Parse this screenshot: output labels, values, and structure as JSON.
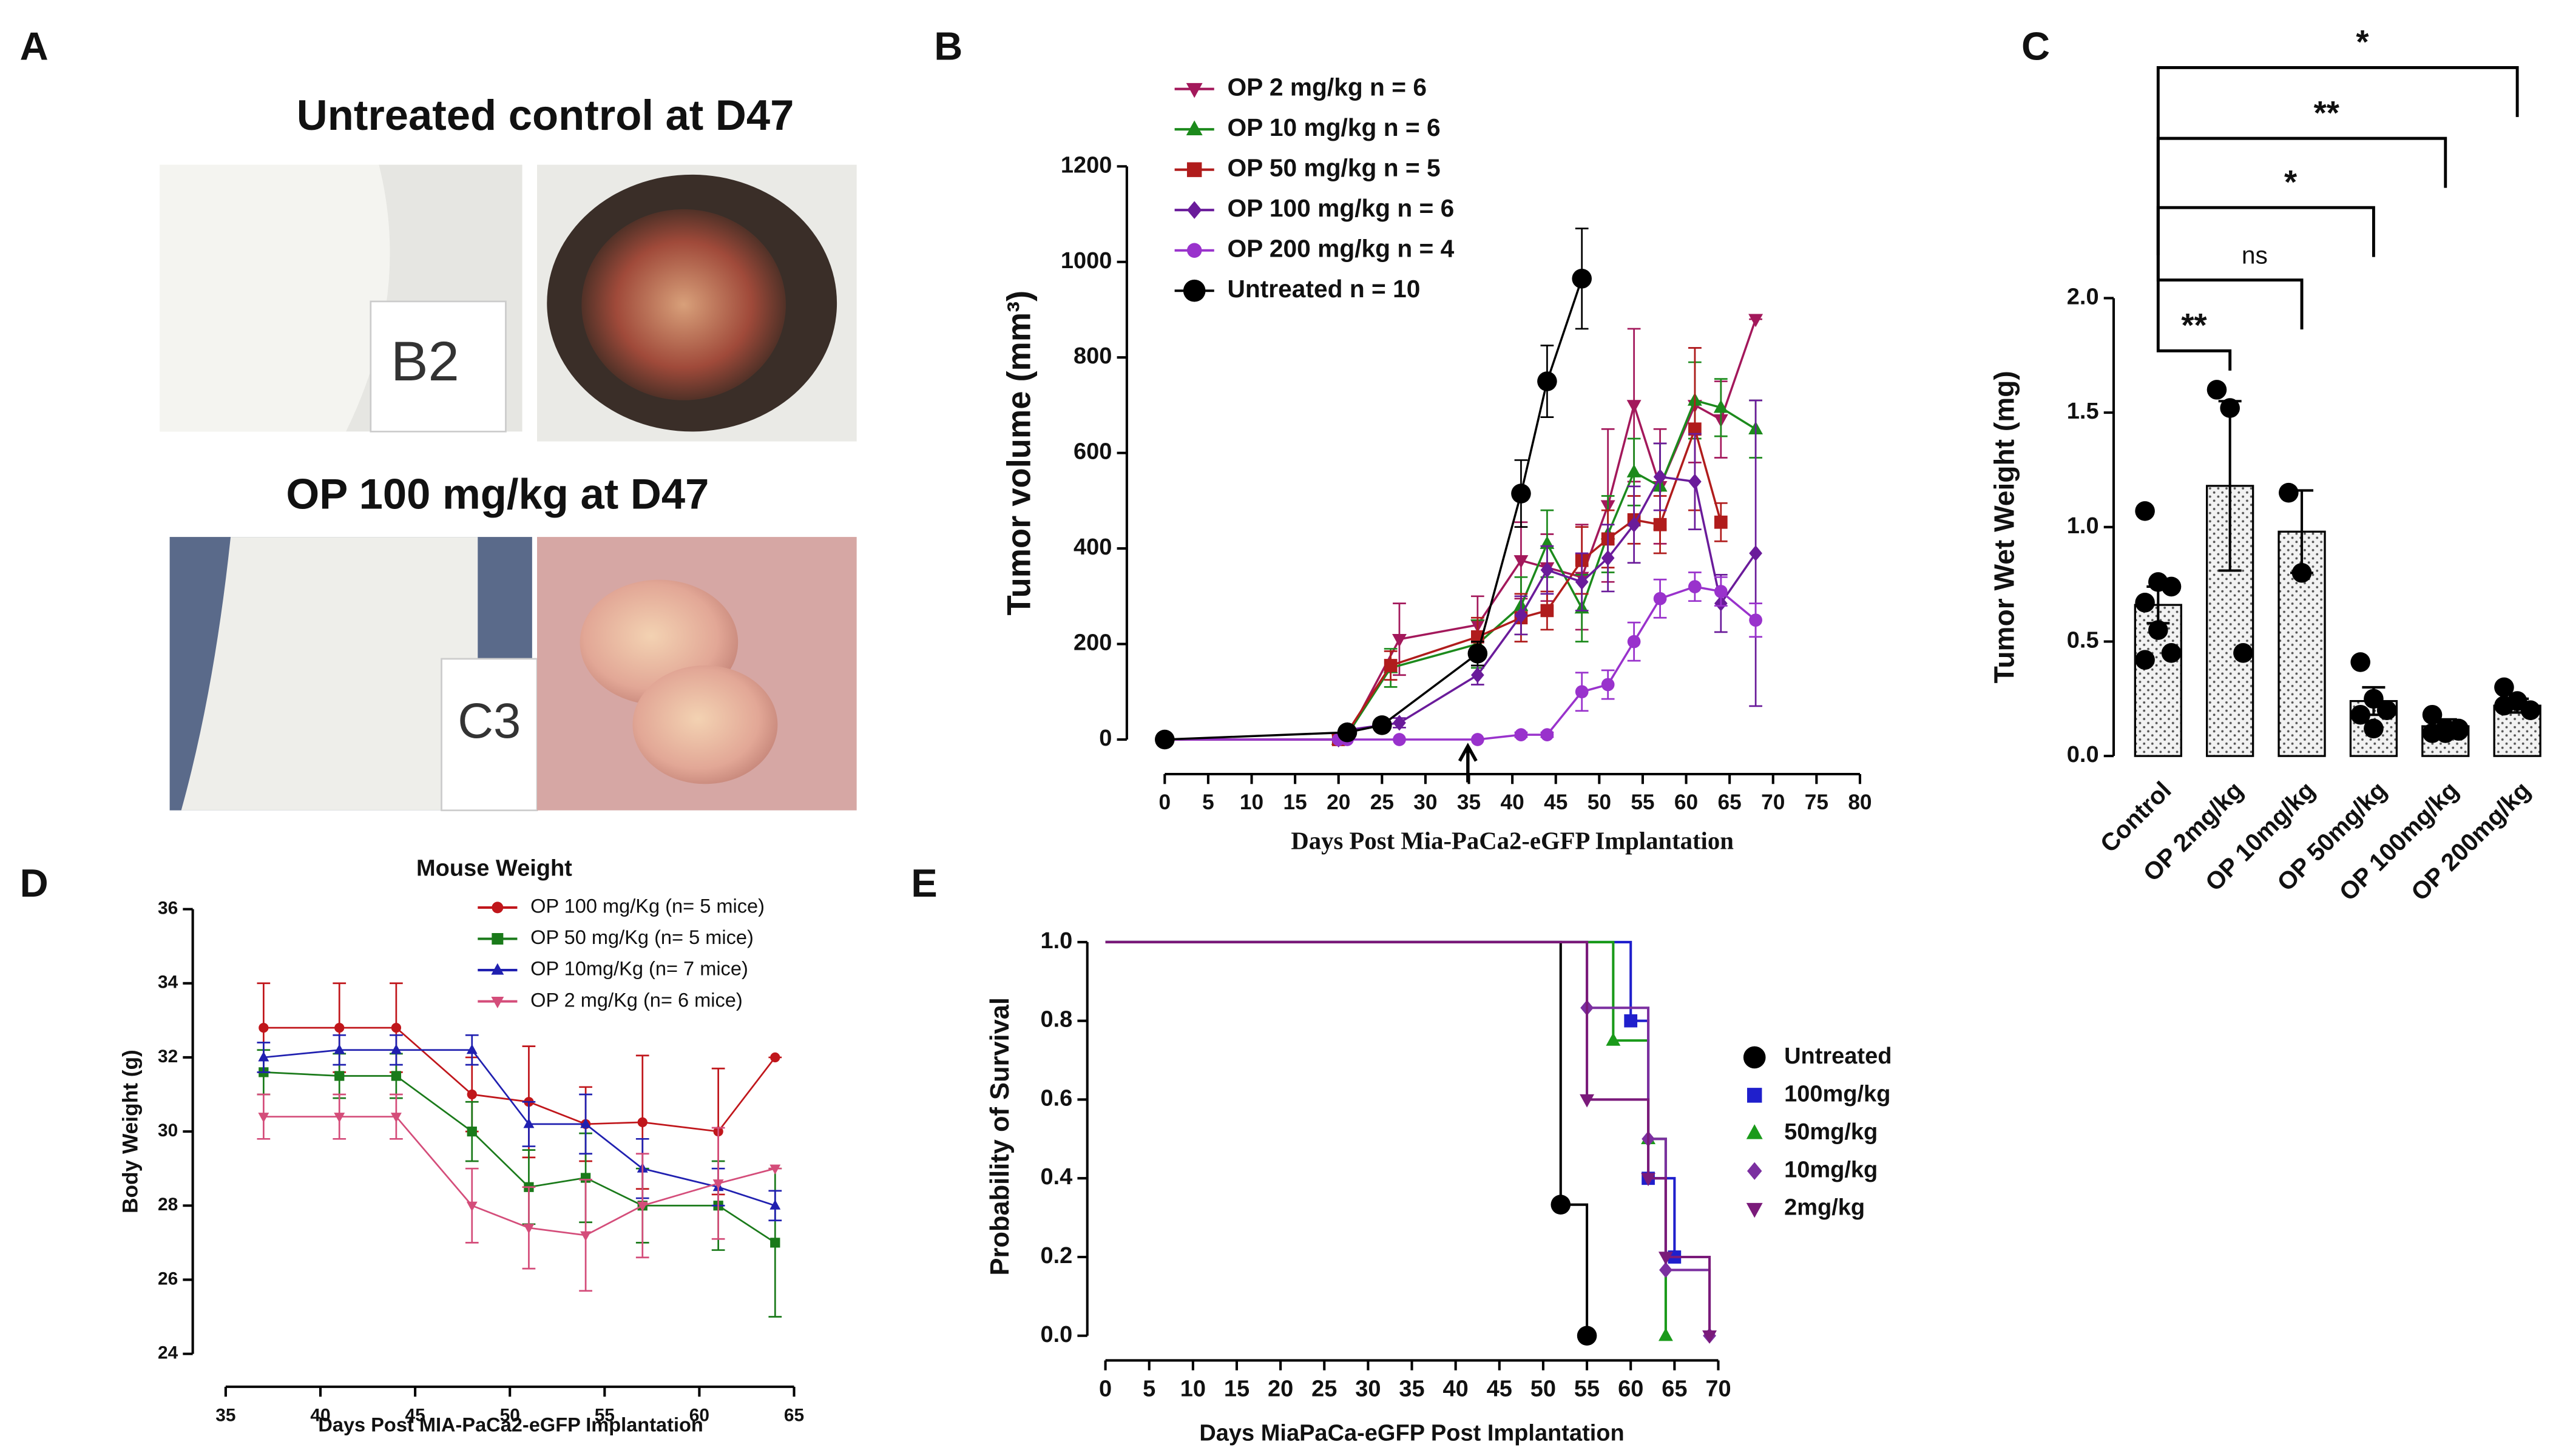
{
  "panels": {
    "labels": [
      "A",
      "B",
      "C",
      "D",
      "E"
    ]
  },
  "photos": {
    "captions": [
      "Untreated control at D47",
      "OP 100 mg/kg at D47"
    ],
    "tags": [
      "B2",
      "C3"
    ]
  },
  "chart_data": [
    {
      "type": "line",
      "x_label": "Days Post Mia-PaCa2-eGFP Implantation",
      "y_label": "Tumor volume (mm³)",
      "xlim": [
        0,
        80
      ],
      "xticks": [
        0,
        5,
        10,
        15,
        20,
        25,
        30,
        35,
        40,
        45,
        50,
        55,
        60,
        65,
        70,
        75,
        80
      ],
      "ylim": [
        0,
        1200
      ],
      "yticks": [
        0,
        200,
        400,
        600,
        800,
        1000,
        1200
      ],
      "legend": "top-left",
      "series": [
        {
          "name": "OP 2 mg/kg n = 6",
          "color": "#a3185b",
          "marker": "triangle-down",
          "x": [
            0,
            20,
            21,
            27,
            36,
            41,
            44,
            48,
            51,
            54,
            57,
            61,
            64,
            68
          ],
          "values": [
            0,
            0,
            5,
            210,
            240,
            375,
            360,
            340,
            490,
            700,
            530,
            700,
            670,
            880
          ],
          "errors": [
            0,
            0,
            5,
            75,
            60,
            80,
            70,
            110,
            160,
            160,
            120,
            120,
            80,
            0
          ]
        },
        {
          "name": "OP 10 mg/kg n = 6",
          "color": "#1c8a1c",
          "marker": "triangle-up",
          "x": [
            0,
            20,
            21,
            26,
            36,
            41,
            44,
            48,
            51,
            54,
            57,
            61,
            64,
            68
          ],
          "values": [
            0,
            0,
            10,
            150,
            200,
            280,
            410,
            275,
            430,
            560,
            530,
            710,
            695,
            650
          ],
          "errors": [
            0,
            0,
            5,
            40,
            50,
            60,
            70,
            70,
            80,
            70,
            90,
            80,
            60,
            60
          ]
        },
        {
          "name": "OP 50 mg/kg n = 5",
          "color": "#b01c1c",
          "marker": "square",
          "x": [
            0,
            20,
            21,
            26,
            36,
            41,
            44,
            48,
            51,
            54,
            57,
            61,
            64
          ],
          "values": [
            0,
            0,
            15,
            155,
            215,
            255,
            270,
            375,
            420,
            460,
            450,
            650,
            455
          ],
          "errors": [
            0,
            0,
            5,
            30,
            40,
            50,
            40,
            70,
            60,
            50,
            60,
            170,
            40
          ]
        },
        {
          "name": "OP 100 mg/kg n = 6",
          "color": "#6a1b9a",
          "marker": "diamond",
          "x": [
            0,
            20,
            21,
            27,
            36,
            41,
            44,
            48,
            51,
            54,
            57,
            61,
            64,
            68
          ],
          "values": [
            0,
            0,
            20,
            35,
            135,
            260,
            355,
            330,
            380,
            450,
            550,
            540,
            285,
            390
          ],
          "errors": [
            0,
            0,
            5,
            10,
            20,
            40,
            50,
            60,
            70,
            80,
            70,
            100,
            60,
            320
          ]
        },
        {
          "name": "OP 200 mg/kg n = 4",
          "color": "#9932cc",
          "marker": "circle",
          "x": [
            0,
            20,
            21,
            27,
            36,
            41,
            44,
            48,
            51,
            54,
            57,
            61,
            64,
            68
          ],
          "values": [
            0,
            0,
            0,
            0,
            0,
            10,
            10,
            100,
            115,
            205,
            295,
            320,
            310,
            250
          ],
          "errors": [
            0,
            0,
            0,
            0,
            0,
            5,
            5,
            40,
            30,
            40,
            40,
            30,
            30,
            35
          ]
        },
        {
          "name": "Untreated n = 10",
          "color": "#000000",
          "marker": "big-circle",
          "x": [
            0,
            21,
            25,
            36,
            41,
            44,
            48
          ],
          "values": [
            0,
            15,
            30,
            180,
            515,
            750,
            965
          ],
          "errors": [
            0,
            5,
            8,
            25,
            70,
            75,
            105
          ]
        }
      ]
    },
    {
      "type": "bar",
      "y_label": "Tumor Wet Weight (mg)",
      "color": "#eeeeee",
      "categories": [
        "Control",
        "OP 2mg/kg",
        "OP 10mg/kg",
        "OP 50mg/kg",
        "OP 100mg/kg",
        "OP 200mg/kg"
      ],
      "values": [
        0.66,
        1.18,
        0.98,
        0.24,
        0.13,
        0.22
      ],
      "errors": [
        0.08,
        0.37,
        0.18,
        0.06,
        0.03,
        0.03
      ],
      "points": [
        [
          1.07,
          0.76,
          0.74,
          0.67,
          0.55,
          0.45,
          0.42
        ],
        [
          1.6,
          1.52,
          0.45
        ],
        [
          1.15,
          0.8
        ],
        [
          0.41,
          0.25,
          0.2,
          0.18,
          0.12
        ],
        [
          0.18,
          0.12,
          0.11,
          0.1,
          0.1,
          0.12
        ],
        [
          0.3,
          0.24,
          0.2,
          0.22
        ]
      ],
      "ylim": [
        0,
        2
      ],
      "yticks": [
        {
          "value": 0,
          "label": "0.0"
        },
        0.5,
        {
          "value": 1,
          "label": "1.0"
        },
        1.5,
        {
          "value": 2,
          "label": "2.0"
        }
      ],
      "comparisons": [
        {
          "from": 0,
          "to": 1,
          "label": "**"
        },
        {
          "from": 0,
          "to": 2,
          "label": "ns"
        },
        {
          "from": 0,
          "to": 3,
          "label": "*"
        },
        {
          "from": 0,
          "to": 4,
          "label": "**"
        },
        {
          "from": 0,
          "to": 5,
          "label": "*"
        }
      ]
    },
    {
      "type": "line",
      "title": "Mouse Weight",
      "x_label": "Days Post MIA-PaCa2-eGFP Implantation",
      "y_label": "Body Weight (g)",
      "xlim": [
        35,
        65
      ],
      "xticks": [
        35,
        40,
        45,
        50,
        55,
        60,
        65
      ],
      "ylim": [
        24,
        36
      ],
      "yticks": [
        24,
        26,
        28,
        30,
        32,
        34,
        36
      ],
      "legend": "top-right",
      "series": [
        {
          "name": "OP 100 mg/Kg (n= 5 mice)",
          "color": "#c0161b",
          "marker": "circle",
          "x": [
            37,
            41,
            44,
            48,
            51,
            54,
            57,
            61,
            64
          ],
          "values": [
            32.8,
            32.8,
            32.8,
            31,
            30.8,
            30.2,
            30.25,
            30,
            32
          ],
          "errors": [
            1.2,
            1.2,
            1.2,
            1,
            1.5,
            1,
            1.8,
            1.7,
            0
          ]
        },
        {
          "name": "OP 50 mg/Kg (n= 5 mice)",
          "color": "#1a7a1a",
          "marker": "square",
          "x": [
            37,
            41,
            44,
            48,
            51,
            54,
            57,
            61,
            64
          ],
          "values": [
            31.6,
            31.5,
            31.5,
            30,
            28.5,
            28.75,
            28,
            28,
            27
          ],
          "errors": [
            0.6,
            0.6,
            0.6,
            0.8,
            1,
            1.2,
            1,
            1.2,
            2
          ]
        },
        {
          "name": "OP 10mg/Kg (n= 7 mice)",
          "color": "#2020b0",
          "marker": "triangle-up",
          "x": [
            37,
            41,
            44,
            48,
            51,
            54,
            57,
            61,
            64
          ],
          "values": [
            32,
            32.2,
            32.2,
            32.2,
            30.2,
            30.2,
            29,
            28.5,
            28
          ],
          "errors": [
            0.4,
            0.4,
            0.4,
            0.4,
            0.6,
            0.8,
            0.8,
            0.5,
            0.4
          ]
        },
        {
          "name": "OP 2 mg/Kg (n= 6 mice)",
          "color": "#d44d7a",
          "marker": "triangle-down",
          "x": [
            37,
            41,
            44,
            48,
            51,
            54,
            57,
            61,
            64
          ],
          "values": [
            30.4,
            30.4,
            30.4,
            28,
            27.4,
            27.2,
            28,
            28.6,
            29
          ],
          "errors": [
            0.6,
            0.6,
            0.6,
            1,
            1.1,
            1.5,
            1.4,
            1.5,
            0
          ]
        }
      ]
    },
    {
      "type": "step",
      "x_label": "Days MiaPaCa-eGFP Post Implantation",
      "y_label": "Probability of Survival",
      "xlim": [
        0,
        70
      ],
      "xticks": [
        0,
        5,
        10,
        15,
        20,
        25,
        30,
        35,
        40,
        45,
        50,
        55,
        60,
        65,
        70
      ],
      "ylim": [
        0,
        1
      ],
      "yticks": [
        {
          "value": 0,
          "label": "0.0"
        },
        0.2,
        0.4,
        0.6,
        0.8,
        {
          "value": 1,
          "label": "1.0"
        }
      ],
      "legend": "right",
      "series": [
        {
          "name": "Untreated",
          "color": "#000000",
          "marker": "big-circle",
          "x": [
            0,
            52,
            55
          ],
          "values": [
            1,
            0.333,
            0
          ]
        },
        {
          "name": "100mg/kg",
          "color": "#1f1fcc",
          "marker": "square",
          "x": [
            0,
            60,
            62,
            65
          ],
          "values": [
            1,
            0.8,
            0.4,
            0.2
          ]
        },
        {
          "name": "50mg/kg",
          "color": "#1a9a1a",
          "marker": "triangle-up",
          "x": [
            0,
            58,
            62,
            64
          ],
          "values": [
            1,
            0.75,
            0.5,
            0
          ]
        },
        {
          "name": "10mg/kg",
          "color": "#7b2fa0",
          "marker": "diamond",
          "x": [
            0,
            55,
            62,
            64,
            69
          ],
          "values": [
            1,
            0.833,
            0.5,
            0.167,
            0
          ]
        },
        {
          "name": "2mg/kg",
          "color": "#7a1a7a",
          "marker": "triangle-down",
          "x": [
            0,
            55,
            62,
            64,
            69
          ],
          "values": [
            1,
            0.6,
            0.4,
            0.2,
            0
          ]
        }
      ]
    }
  ]
}
